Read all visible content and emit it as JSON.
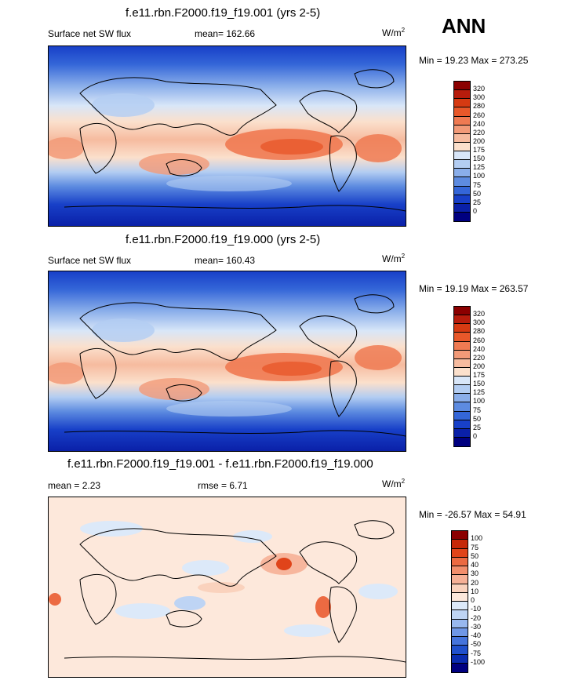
{
  "season": "ANN",
  "panels": [
    {
      "title": "f.e11.rbn.F2000.f19_f19.001 (yrs 2-5)",
      "left_label": "Surface net SW flux",
      "center_label": "mean= 162.66",
      "units": "W/m",
      "units_sup": "2",
      "minmax": "Min =  19.23 Max = 273.25",
      "colorbar": {
        "labels": [
          "320",
          "300",
          "280",
          "260",
          "240",
          "220",
          "200",
          "175",
          "150",
          "125",
          "100",
          "75",
          "50",
          "25",
          "0"
        ],
        "colors": [
          "#8b0000",
          "#b71c0c",
          "#d63a12",
          "#e8582a",
          "#ef7a52",
          "#f29a78",
          "#f6bb9f",
          "#fbe0cc",
          "#d8e6f8",
          "#b3cdf2",
          "#8aaeea",
          "#5d8be0",
          "#3466d8",
          "#1840c8",
          "#0a20a8",
          "#000080"
        ]
      }
    },
    {
      "title": "f.e11.rbn.F2000.f19_f19.000 (yrs 2-5)",
      "left_label": "Surface net SW flux",
      "center_label": "mean= 160.43",
      "units": "W/m",
      "units_sup": "2",
      "minmax": "Min =  19.19 Max = 263.57",
      "colorbar": {
        "labels": [
          "320",
          "300",
          "280",
          "260",
          "240",
          "220",
          "200",
          "175",
          "150",
          "125",
          "100",
          "75",
          "50",
          "25",
          "0"
        ],
        "colors": [
          "#8b0000",
          "#b71c0c",
          "#d63a12",
          "#e8582a",
          "#ef7a52",
          "#f29a78",
          "#f6bb9f",
          "#fbe0cc",
          "#d8e6f8",
          "#b3cdf2",
          "#8aaeea",
          "#5d8be0",
          "#3466d8",
          "#1840c8",
          "#0a20a8",
          "#000080"
        ]
      }
    },
    {
      "title": "f.e11.rbn.F2000.f19_f19.001 - f.e11.rbn.F2000.f19_f19.000",
      "left_label": "mean =   2.23",
      "center_label": "rmse =   6.71",
      "units": "W/m",
      "units_sup": "2",
      "minmax": "Min = -26.57 Max =  54.91",
      "colorbar": {
        "labels": [
          "100",
          "75",
          "50",
          "40",
          "30",
          "20",
          "10",
          "0",
          "-10",
          "-20",
          "-30",
          "-40",
          "-50",
          "-75",
          "-100"
        ],
        "colors": [
          "#8b0000",
          "#c62808",
          "#e0441a",
          "#ec6a42",
          "#f28e6c",
          "#f6b096",
          "#fad2bd",
          "#fde8db",
          "#dce9f9",
          "#bed4f4",
          "#98b8ee",
          "#6f97e6",
          "#4574dc",
          "#2050cc",
          "#0a2cb0",
          "#000080"
        ]
      }
    }
  ]
}
